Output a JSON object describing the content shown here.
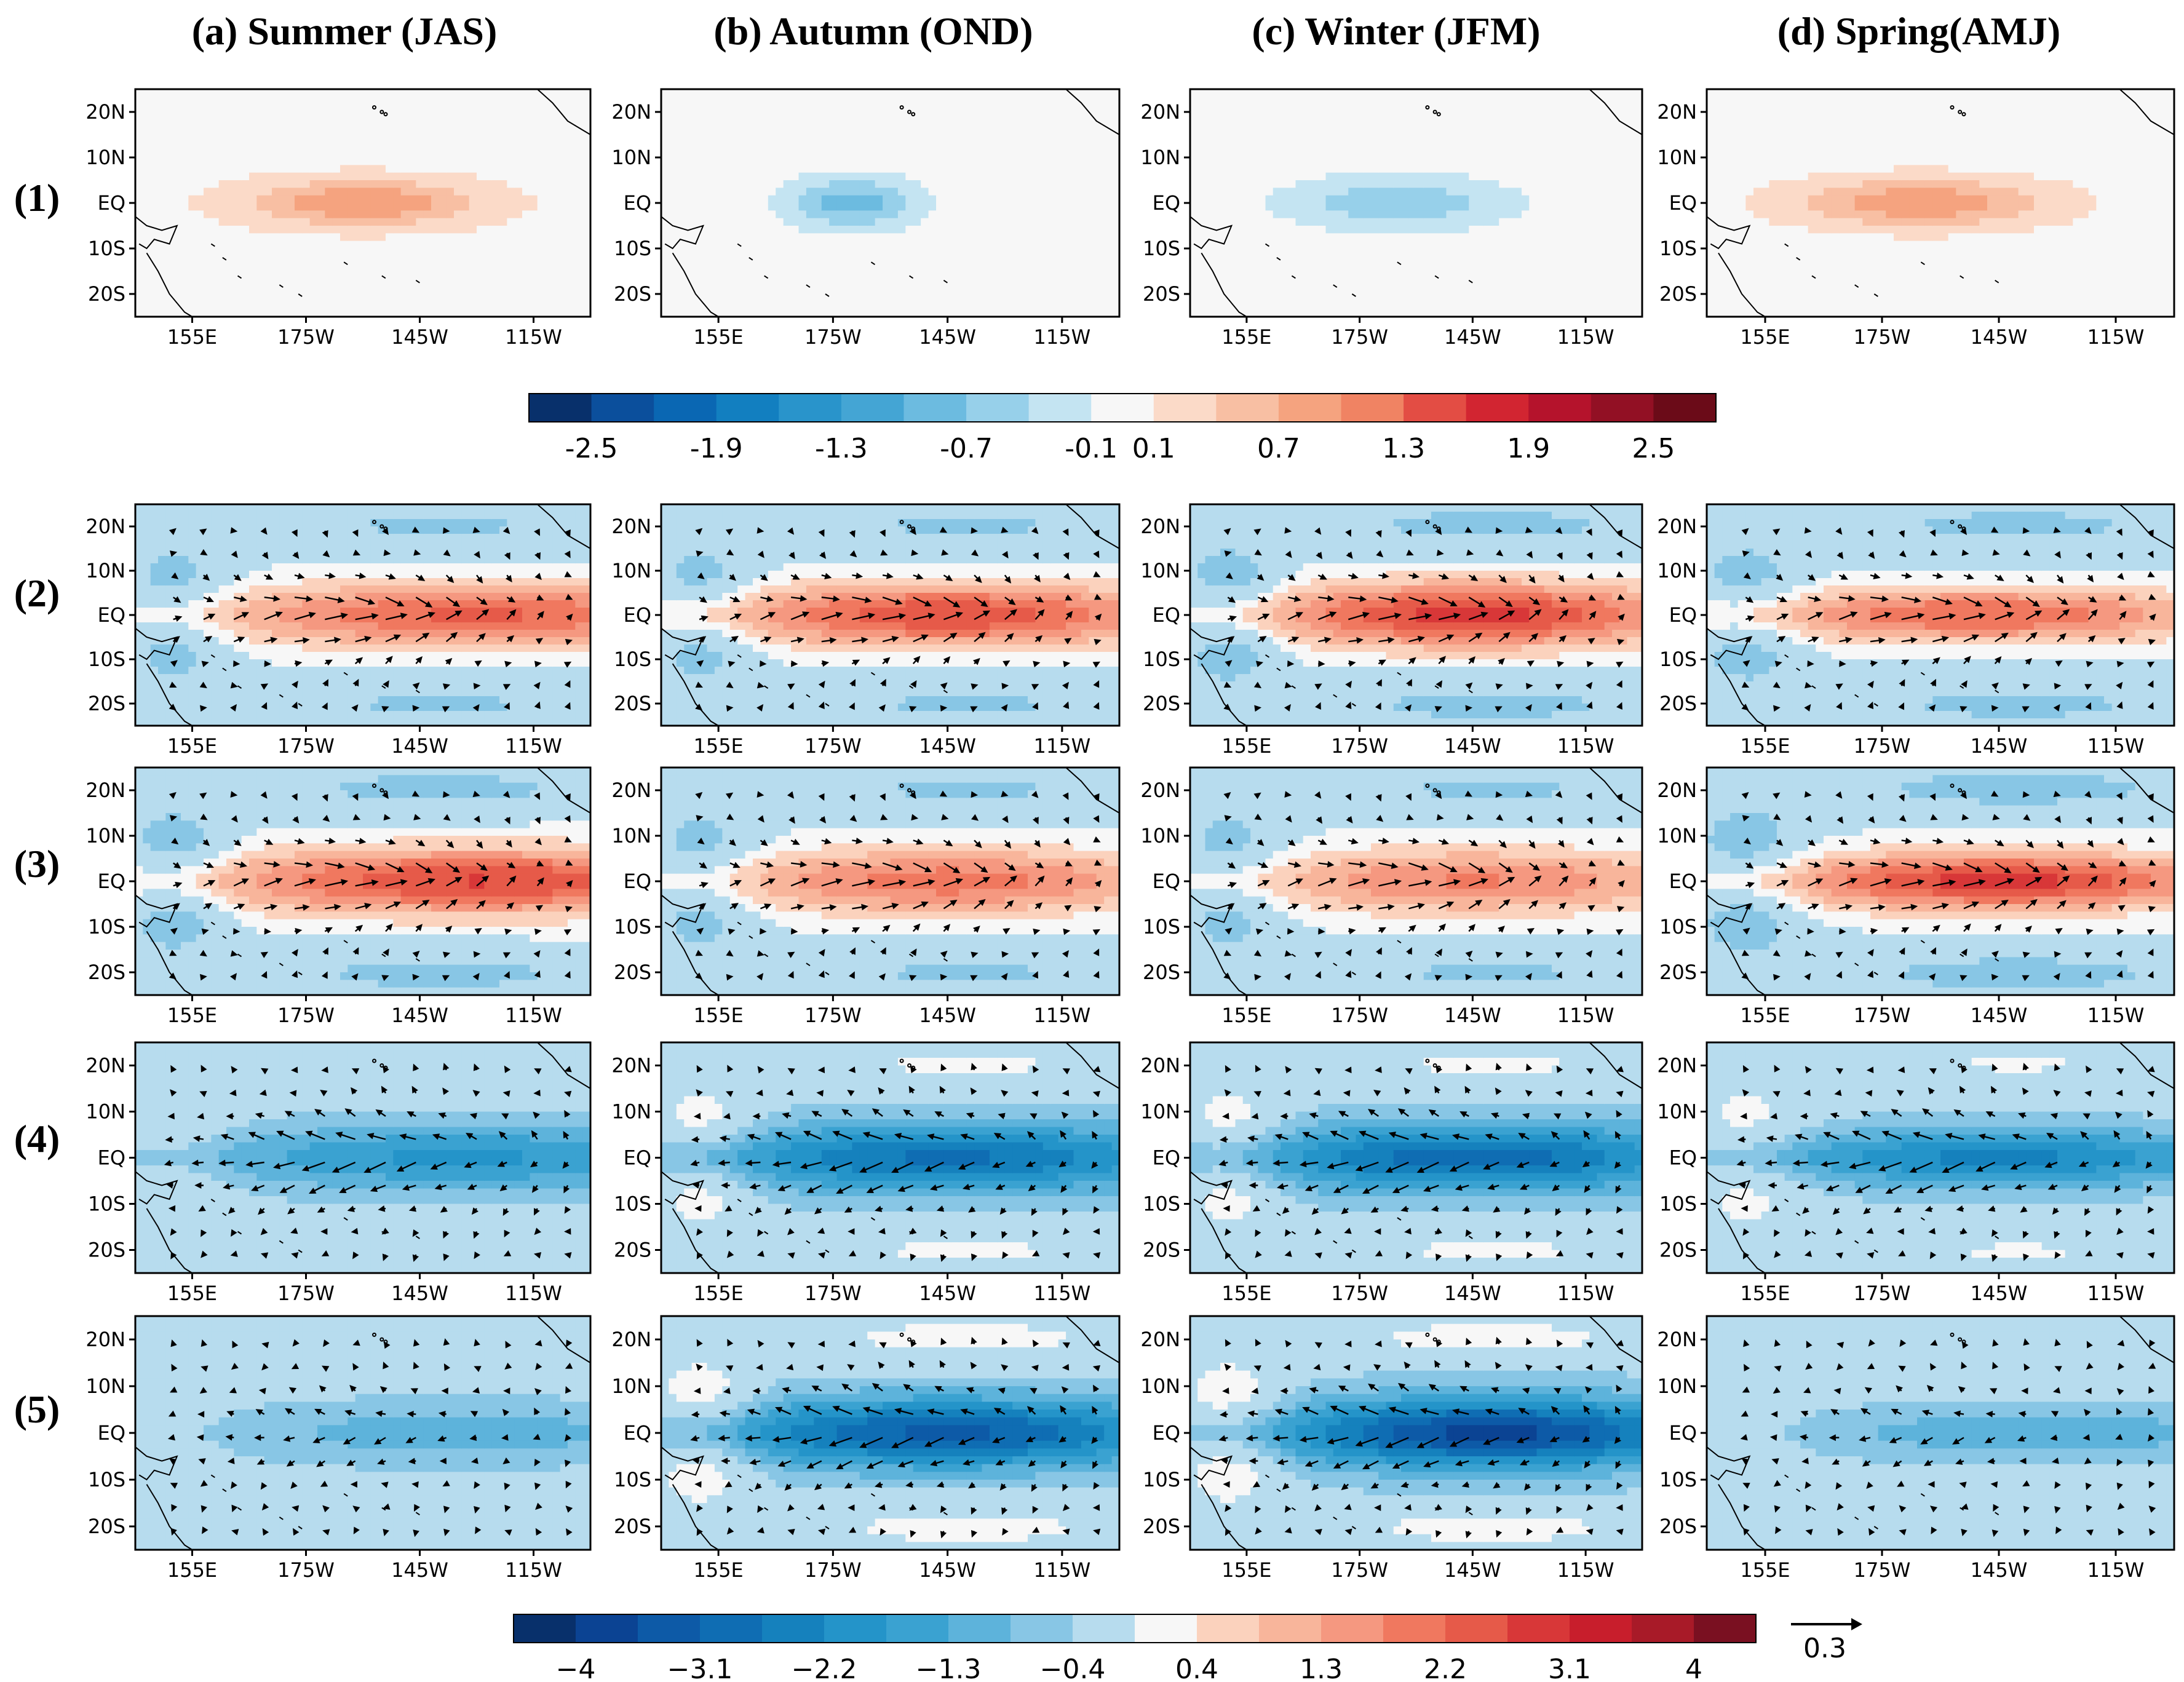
{
  "columns": [
    {
      "label": "(a) Summer (JAS)"
    },
    {
      "label": "(b) Autumn (OND)"
    },
    {
      "label": "(c) Winter (JFM)"
    },
    {
      "label": "(d) Spring(AMJ)"
    }
  ],
  "rows": [
    {
      "label": "(1)"
    },
    {
      "label": "(2)"
    },
    {
      "label": "(3)"
    },
    {
      "label": "(4)"
    },
    {
      "label": "(5)"
    }
  ],
  "axes": {
    "lat_ticks": [
      "20N",
      "10N",
      "EQ",
      "10S",
      "20S"
    ],
    "lon_ticks": [
      "155E",
      "175W",
      "145W",
      "115W"
    ]
  },
  "colors": {
    "scale1": [
      "#08306b",
      "#0b4f9c",
      "#0a67b3",
      "#127fc0",
      "#2994cb",
      "#44a5d4",
      "#6cbbe0",
      "#97d0ea",
      "#c4e4f2",
      "#f7f7f7",
      "#fbdac8",
      "#f8bfa3",
      "#f5a37f",
      "#f08363",
      "#e34d44",
      "#d22531",
      "#b5132c",
      "#921024",
      "#6b0b18"
    ],
    "scale2": [
      "#08306b",
      "#0b4393",
      "#0d5aa7",
      "#0f6db3",
      "#1581bd",
      "#2494c9",
      "#3aa2d1",
      "#5db3db",
      "#88c6e5",
      "#b7dcee",
      "#f7f7f7",
      "#fbd2bd",
      "#f8b59b",
      "#f59880",
      "#f0785f",
      "#e65a49",
      "#d83738",
      "#c81e2c",
      "#a81a28",
      "#7a1021"
    ]
  },
  "colorbar_top": {
    "tick_labels": [
      "-2.5",
      "-1.9",
      "-1.3",
      "-0.7",
      "-0.1",
      "0.1",
      "0.7",
      "1.3",
      "1.9",
      "2.5"
    ]
  },
  "colorbar_bottom": {
    "tick_labels": [
      "−4",
      "−3.1",
      "−2.2",
      "−1.3",
      "−0.4",
      "0.4",
      "1.3",
      "2.2",
      "3.1",
      "4"
    ],
    "reference_vector": "0.3"
  },
  "chart_data": {
    "type": "heatmap",
    "description_grid": "5 rows x 4 seasons of tropical Pacific anomaly maps (140E-100W, 25S-25N)",
    "x_range": [
      140,
      260
    ],
    "y_range": [
      -25,
      25
    ],
    "x_ticks": [
      155,
      185,
      215,
      245
    ],
    "y_ticks": [
      20,
      10,
      0,
      -10,
      -20
    ],
    "colorbar_top": {
      "levels": [
        -2.5,
        -2.2,
        -1.9,
        -1.6,
        -1.3,
        -1.0,
        -0.7,
        -0.4,
        -0.1,
        0.1,
        0.4,
        0.7,
        1.0,
        1.3,
        1.6,
        1.9,
        2.2,
        2.5
      ]
    },
    "colorbar_bottom": {
      "levels": [
        -4,
        -3.55,
        -3.1,
        -2.65,
        -2.2,
        -1.75,
        -1.3,
        -0.85,
        -0.4,
        0.4,
        0.85,
        1.3,
        1.75,
        2.2,
        2.65,
        3.1,
        3.55,
        4
      ],
      "vector_reference": 0.3
    },
    "panels": [
      {
        "row": 1,
        "col": "JAS",
        "amp": 1.0,
        "cx": 200,
        "sx": 30,
        "sy": 5,
        "off": 0.15,
        "vec": 0
      },
      {
        "row": 1,
        "col": "OND",
        "amp": -0.9,
        "cx": 190,
        "sx": 15,
        "sy": 5,
        "off": -0.1,
        "vec": 0
      },
      {
        "row": 1,
        "col": "JFM",
        "amp": -0.7,
        "cx": 195,
        "sx": 25,
        "sy": 5,
        "off": -0.1,
        "vec": 0
      },
      {
        "row": 1,
        "col": "AMJ",
        "amp": 1.0,
        "cx": 195,
        "sx": 30,
        "sy": 5,
        "off": 0.15,
        "vec": 0
      },
      {
        "row": 2,
        "col": "JAS",
        "amp": 2.3,
        "cx": 230,
        "sx": 70,
        "sy": 7,
        "off": 0.5,
        "vec": 1
      },
      {
        "row": 2,
        "col": "OND",
        "amp": 2.6,
        "cx": 215,
        "sx": 60,
        "sy": 7,
        "off": 0.5,
        "vec": 1
      },
      {
        "row": 2,
        "col": "JFM",
        "amp": 2.8,
        "cx": 215,
        "sx": 55,
        "sy": 7,
        "off": 0.6,
        "vec": 1
      },
      {
        "row": 2,
        "col": "AMJ",
        "amp": 2.2,
        "cx": 210,
        "sx": 60,
        "sy": 6,
        "off": 0.5,
        "vec": 1
      },
      {
        "row": 3,
        "col": "JAS",
        "amp": 2.6,
        "cx": 230,
        "sx": 70,
        "sy": 7,
        "off": 0.6,
        "vec": 1
      },
      {
        "row": 3,
        "col": "OND",
        "amp": 2.0,
        "cx": 215,
        "sx": 60,
        "sy": 7,
        "off": 0.5,
        "vec": 1
      },
      {
        "row": 3,
        "col": "JFM",
        "amp": 1.8,
        "cx": 215,
        "sx": 60,
        "sy": 7,
        "off": 0.5,
        "vec": 1
      },
      {
        "row": 3,
        "col": "AMJ",
        "amp": 2.8,
        "cx": 215,
        "sx": 55,
        "sy": 6,
        "off": 0.6,
        "vec": 1
      },
      {
        "row": 4,
        "col": "JAS",
        "amp": -1.6,
        "cx": 225,
        "sx": 70,
        "sy": 7,
        "off": -0.3,
        "vec": -1
      },
      {
        "row": 4,
        "col": "OND",
        "amp": -2.3,
        "cx": 215,
        "sx": 65,
        "sy": 7,
        "off": -0.5,
        "vec": -1
      },
      {
        "row": 4,
        "col": "JFM",
        "amp": -2.5,
        "cx": 215,
        "sx": 60,
        "sy": 7,
        "off": -0.5,
        "vec": -1
      },
      {
        "row": 4,
        "col": "AMJ",
        "amp": -2.0,
        "cx": 215,
        "sx": 60,
        "sy": 6,
        "off": -0.4,
        "vec": -1
      },
      {
        "row": 5,
        "col": "JAS",
        "amp": -0.9,
        "cx": 225,
        "sx": 70,
        "sy": 7,
        "off": -0.2,
        "vec": -0.5
      },
      {
        "row": 5,
        "col": "OND",
        "amp": -2.7,
        "cx": 215,
        "sx": 60,
        "sy": 7,
        "off": -0.6,
        "vec": -1
      },
      {
        "row": 5,
        "col": "JFM",
        "amp": -3.2,
        "cx": 220,
        "sx": 55,
        "sy": 7,
        "off": -0.6,
        "vec": -1
      },
      {
        "row": 5,
        "col": "AMJ",
        "amp": -1.0,
        "cx": 225,
        "sx": 65,
        "sy": 6,
        "off": -0.2,
        "vec": -0.5
      }
    ]
  }
}
